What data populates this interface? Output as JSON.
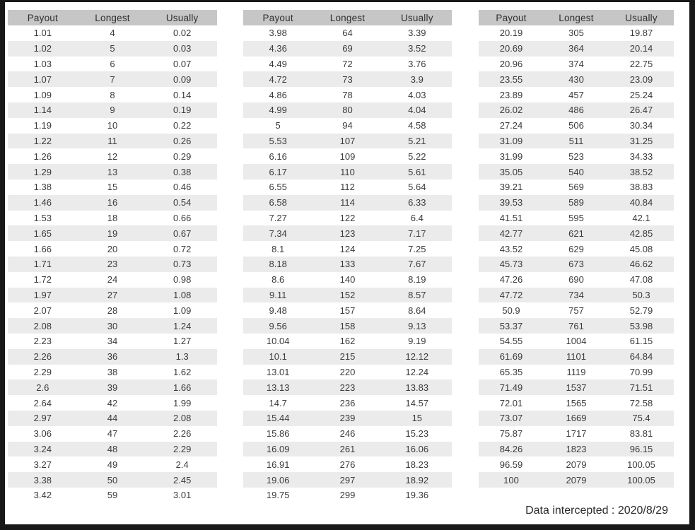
{
  "chart_data": [
    {
      "type": "table",
      "columns": [
        "Payout",
        "Longest",
        "Usually"
      ],
      "rows": [
        [
          "1.01",
          "4",
          "0.02"
        ],
        [
          "1.02",
          "5",
          "0.03"
        ],
        [
          "1.03",
          "6",
          "0.07"
        ],
        [
          "1.07",
          "7",
          "0.09"
        ],
        [
          "1.09",
          "8",
          "0.14"
        ],
        [
          "1.14",
          "9",
          "0.19"
        ],
        [
          "1.19",
          "10",
          "0.22"
        ],
        [
          "1.22",
          "11",
          "0.26"
        ],
        [
          "1.26",
          "12",
          "0.29"
        ],
        [
          "1.29",
          "13",
          "0.38"
        ],
        [
          "1.38",
          "15",
          "0.46"
        ],
        [
          "1.46",
          "16",
          "0.54"
        ],
        [
          "1.53",
          "18",
          "0.66"
        ],
        [
          "1.65",
          "19",
          "0.67"
        ],
        [
          "1.66",
          "20",
          "0.72"
        ],
        [
          "1.71",
          "23",
          "0.73"
        ],
        [
          "1.72",
          "24",
          "0.98"
        ],
        [
          "1.97",
          "27",
          "1.08"
        ],
        [
          "2.07",
          "28",
          "1.09"
        ],
        [
          "2.08",
          "30",
          "1.24"
        ],
        [
          "2.23",
          "34",
          "1.27"
        ],
        [
          "2.26",
          "36",
          "1.3"
        ],
        [
          "2.29",
          "38",
          "1.62"
        ],
        [
          "2.6",
          "39",
          "1.66"
        ],
        [
          "2.64",
          "42",
          "1.99"
        ],
        [
          "2.97",
          "44",
          "2.08"
        ],
        [
          "3.06",
          "47",
          "2.26"
        ],
        [
          "3.24",
          "48",
          "2.29"
        ],
        [
          "3.27",
          "49",
          "2.4"
        ],
        [
          "3.38",
          "50",
          "2.45"
        ],
        [
          "3.42",
          "59",
          "3.01"
        ]
      ]
    },
    {
      "type": "table",
      "columns": [
        "Payout",
        "Longest",
        "Usually"
      ],
      "rows": [
        [
          "3.98",
          "64",
          "3.39"
        ],
        [
          "4.36",
          "69",
          "3.52"
        ],
        [
          "4.49",
          "72",
          "3.76"
        ],
        [
          "4.72",
          "73",
          "3.9"
        ],
        [
          "4.86",
          "78",
          "4.03"
        ],
        [
          "4.99",
          "80",
          "4.04"
        ],
        [
          "5",
          "94",
          "4.58"
        ],
        [
          "5.53",
          "107",
          "5.21"
        ],
        [
          "6.16",
          "109",
          "5.22"
        ],
        [
          "6.17",
          "110",
          "5.61"
        ],
        [
          "6.55",
          "112",
          "5.64"
        ],
        [
          "6.58",
          "114",
          "6.33"
        ],
        [
          "7.27",
          "122",
          "6.4"
        ],
        [
          "7.34",
          "123",
          "7.17"
        ],
        [
          "8.1",
          "124",
          "7.25"
        ],
        [
          "8.18",
          "133",
          "7.67"
        ],
        [
          "8.6",
          "140",
          "8.19"
        ],
        [
          "9.11",
          "152",
          "8.57"
        ],
        [
          "9.48",
          "157",
          "8.64"
        ],
        [
          "9.56",
          "158",
          "9.13"
        ],
        [
          "10.04",
          "162",
          "9.19"
        ],
        [
          "10.1",
          "215",
          "12.12"
        ],
        [
          "13.01",
          "220",
          "12.24"
        ],
        [
          "13.13",
          "223",
          "13.83"
        ],
        [
          "14.7",
          "236",
          "14.57"
        ],
        [
          "15.44",
          "239",
          "15"
        ],
        [
          "15.86",
          "246",
          "15.23"
        ],
        [
          "16.09",
          "261",
          "16.06"
        ],
        [
          "16.91",
          "276",
          "18.23"
        ],
        [
          "19.06",
          "297",
          "18.92"
        ],
        [
          "19.75",
          "299",
          "19.36"
        ]
      ]
    },
    {
      "type": "table",
      "columns": [
        "Payout",
        "Longest",
        "Usually"
      ],
      "rows": [
        [
          "20.19",
          "305",
          "19.87"
        ],
        [
          "20.69",
          "364",
          "20.14"
        ],
        [
          "20.96",
          "374",
          "22.75"
        ],
        [
          "23.55",
          "430",
          "23.09"
        ],
        [
          "23.89",
          "457",
          "25.24"
        ],
        [
          "26.02",
          "486",
          "26.47"
        ],
        [
          "27.24",
          "506",
          "30.34"
        ],
        [
          "31.09",
          "511",
          "31.25"
        ],
        [
          "31.99",
          "523",
          "34.33"
        ],
        [
          "35.05",
          "540",
          "38.52"
        ],
        [
          "39.21",
          "569",
          "38.83"
        ],
        [
          "39.53",
          "589",
          "40.84"
        ],
        [
          "41.51",
          "595",
          "42.1"
        ],
        [
          "42.77",
          "621",
          "42.85"
        ],
        [
          "43.52",
          "629",
          "45.08"
        ],
        [
          "45.73",
          "673",
          "46.62"
        ],
        [
          "47.26",
          "690",
          "47.08"
        ],
        [
          "47.72",
          "734",
          "50.3"
        ],
        [
          "50.9",
          "757",
          "52.79"
        ],
        [
          "53.37",
          "761",
          "53.98"
        ],
        [
          "54.55",
          "1004",
          "61.15"
        ],
        [
          "61.69",
          "1101",
          "64.84"
        ],
        [
          "65.35",
          "1119",
          "70.99"
        ],
        [
          "71.49",
          "1537",
          "71.51"
        ],
        [
          "72.01",
          "1565",
          "72.58"
        ],
        [
          "73.07",
          "1669",
          "75.4"
        ],
        [
          "75.87",
          "1717",
          "83.81"
        ],
        [
          "84.26",
          "1823",
          "96.15"
        ],
        [
          "96.59",
          "2079",
          "100.05"
        ],
        [
          "100",
          "2079",
          "100.05"
        ]
      ]
    }
  ],
  "footer": {
    "note": "Data intercepted : 2020/8/29"
  },
  "colors": {
    "header_bg": "#c6c6c6",
    "stripe_bg": "#ebebeb",
    "text": "#3b3b3b",
    "frame": "#181818",
    "background": "#ffffff"
  }
}
